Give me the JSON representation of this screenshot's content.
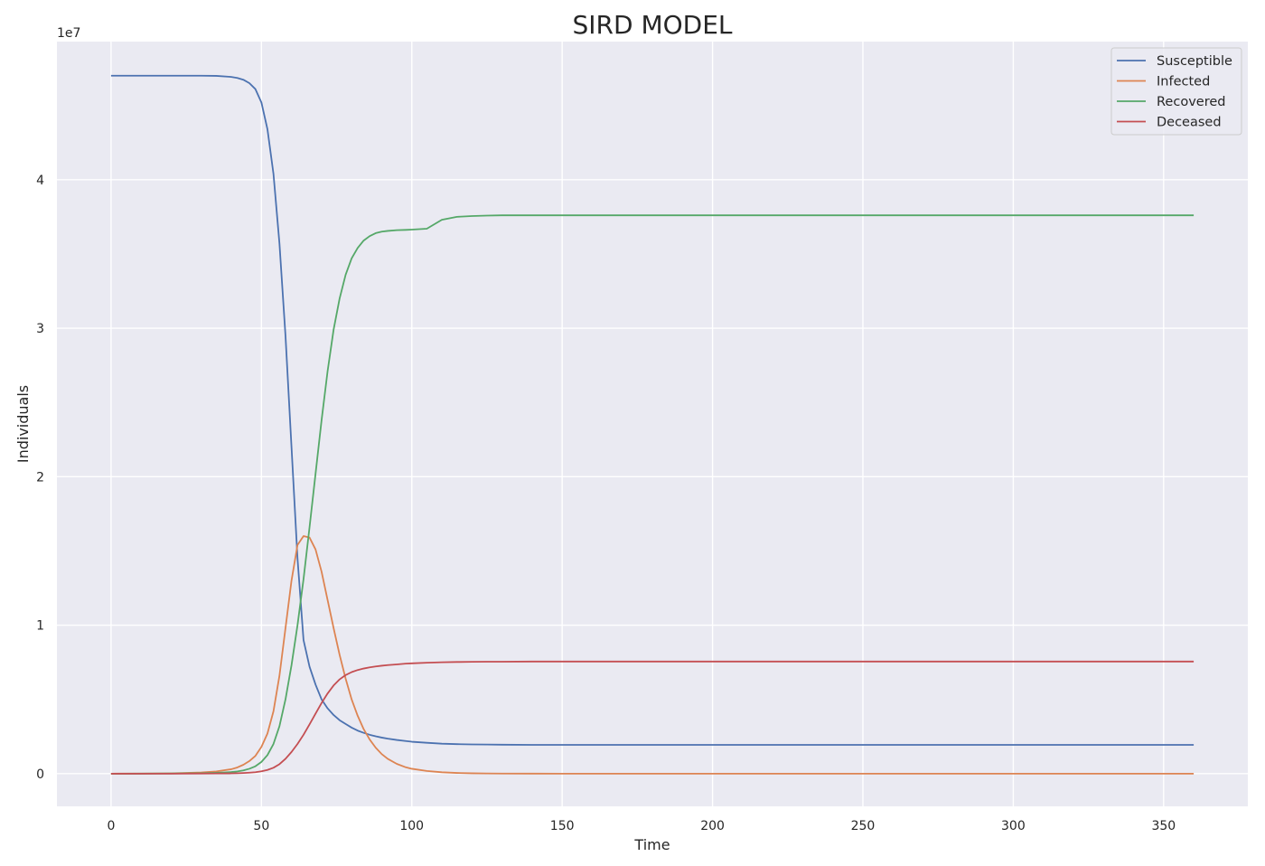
{
  "chart_data": {
    "type": "line",
    "title": "SIRD MODEL",
    "xlabel": "Time",
    "ylabel": "Individuals",
    "y_offset_label": "1e7",
    "xlim": [
      -18,
      378
    ],
    "ylim": [
      -0.22,
      4.93
    ],
    "x_ticks": [
      0,
      50,
      100,
      150,
      200,
      250,
      300,
      350
    ],
    "x_tick_labels": [
      "0",
      "50",
      "100",
      "150",
      "200",
      "250",
      "300",
      "350"
    ],
    "y_ticks": [
      0,
      1,
      2,
      3,
      4
    ],
    "y_tick_labels": [
      "0",
      "1",
      "2",
      "3",
      "4"
    ],
    "grid": true,
    "background": "#eaeaf2",
    "legend_position": "top-right",
    "x": [
      0,
      10,
      20,
      30,
      35,
      40,
      42,
      44,
      46,
      48,
      50,
      52,
      54,
      56,
      58,
      60,
      62,
      64,
      66,
      68,
      70,
      72,
      74,
      76,
      78,
      80,
      82,
      84,
      86,
      88,
      90,
      92,
      95,
      98,
      100,
      105,
      110,
      115,
      120,
      125,
      130,
      140,
      150,
      160,
      180,
      200,
      250,
      300,
      360
    ],
    "series": [
      {
        "name": "Susceptible",
        "color": "#4c72b0",
        "values": [
          4.7,
          4.7,
          4.7,
          4.7,
          4.699,
          4.692,
          4.685,
          4.673,
          4.65,
          4.61,
          4.52,
          4.34,
          4.04,
          3.57,
          2.95,
          2.2,
          1.45,
          0.9,
          0.72,
          0.6,
          0.5,
          0.44,
          0.395,
          0.36,
          0.335,
          0.31,
          0.29,
          0.275,
          0.262,
          0.252,
          0.243,
          0.236,
          0.227,
          0.22,
          0.215,
          0.208,
          0.202,
          0.199,
          0.197,
          0.196,
          0.195,
          0.194,
          0.194,
          0.194,
          0.194,
          0.194,
          0.194,
          0.194,
          0.194
        ]
      },
      {
        "name": "Infected",
        "color": "#dd8452",
        "values": [
          0.0001,
          0.0005,
          0.002,
          0.008,
          0.015,
          0.03,
          0.042,
          0.06,
          0.085,
          0.12,
          0.18,
          0.27,
          0.42,
          0.66,
          0.98,
          1.3,
          1.54,
          1.6,
          1.59,
          1.51,
          1.36,
          1.17,
          0.98,
          0.8,
          0.64,
          0.5,
          0.39,
          0.3,
          0.23,
          0.175,
          0.132,
          0.1,
          0.066,
          0.043,
          0.033,
          0.018,
          0.0095,
          0.005,
          0.0027,
          0.0014,
          0.0008,
          0.0002,
          0.0001,
          0.0,
          0.0,
          0.0,
          0.0,
          0.0,
          0.0
        ]
      },
      {
        "name": "Recovered",
        "color": "#55a868",
        "values": [
          0.0,
          0.0002,
          0.001,
          0.003,
          0.006,
          0.011,
          0.015,
          0.022,
          0.033,
          0.05,
          0.079,
          0.125,
          0.2,
          0.32,
          0.5,
          0.73,
          1.0,
          1.31,
          1.66,
          2.02,
          2.38,
          2.71,
          2.99,
          3.2,
          3.36,
          3.47,
          3.54,
          3.59,
          3.62,
          3.64,
          3.65,
          3.655,
          3.66,
          3.662,
          3.664,
          3.67,
          3.73,
          3.75,
          3.755,
          3.758,
          3.76,
          3.76,
          3.76,
          3.76,
          3.76,
          3.76,
          3.76,
          3.76,
          3.76
        ]
      },
      {
        "name": "Deceased",
        "color": "#c44e52",
        "values": [
          0.0,
          0.0,
          0.0,
          0.0006,
          0.0012,
          0.002,
          0.003,
          0.0045,
          0.0068,
          0.01,
          0.016,
          0.025,
          0.04,
          0.064,
          0.1,
          0.146,
          0.2,
          0.262,
          0.332,
          0.404,
          0.476,
          0.54,
          0.594,
          0.635,
          0.664,
          0.684,
          0.698,
          0.708,
          0.716,
          0.722,
          0.727,
          0.731,
          0.736,
          0.741,
          0.743,
          0.747,
          0.75,
          0.752,
          0.753,
          0.754,
          0.754,
          0.755,
          0.755,
          0.755,
          0.755,
          0.755,
          0.755,
          0.755,
          0.755
        ]
      }
    ]
  }
}
